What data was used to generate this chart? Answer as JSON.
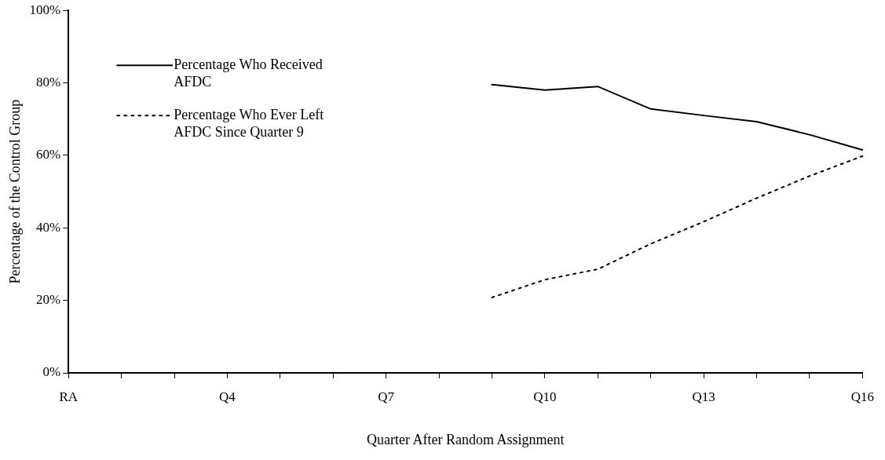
{
  "chart_data": {
    "type": "line",
    "xlabel": "Quarter After Random Assignment",
    "ylabel": "Percentage of the Control Group",
    "categories": [
      "RA",
      null,
      null,
      "Q4",
      null,
      null,
      "Q7",
      null,
      null,
      "Q10",
      null,
      null,
      "Q13",
      null,
      null,
      "Q16"
    ],
    "series": [
      {
        "name": "Percentage Who Received AFDC",
        "color": "#000000",
        "line_style": "solid",
        "values": [
          null,
          null,
          null,
          null,
          null,
          null,
          null,
          null,
          79.5,
          78,
          79,
          72.8,
          71,
          69.3,
          65.7,
          61.5
        ]
      },
      {
        "name": "Percentage Who Ever Left AFDC Since Quarter 9",
        "color": "#000000",
        "line_style": "dotted",
        "values": [
          null,
          null,
          null,
          null,
          null,
          null,
          null,
          null,
          20.8,
          25.7,
          28.6,
          35.6,
          41.7,
          48.2,
          54.3,
          59.8
        ]
      }
    ],
    "ylim": [
      0,
      100
    ],
    "yticks": [
      {
        "value": 0,
        "label": "0%"
      },
      {
        "value": 20,
        "label": "20%"
      },
      {
        "value": 40,
        "label": "40%"
      },
      {
        "value": 60,
        "label": "60%"
      },
      {
        "value": 80,
        "label": "80%"
      },
      {
        "value": 100,
        "label": "100%"
      }
    ],
    "grid": false,
    "legend": "top left",
    "marker": "none"
  }
}
